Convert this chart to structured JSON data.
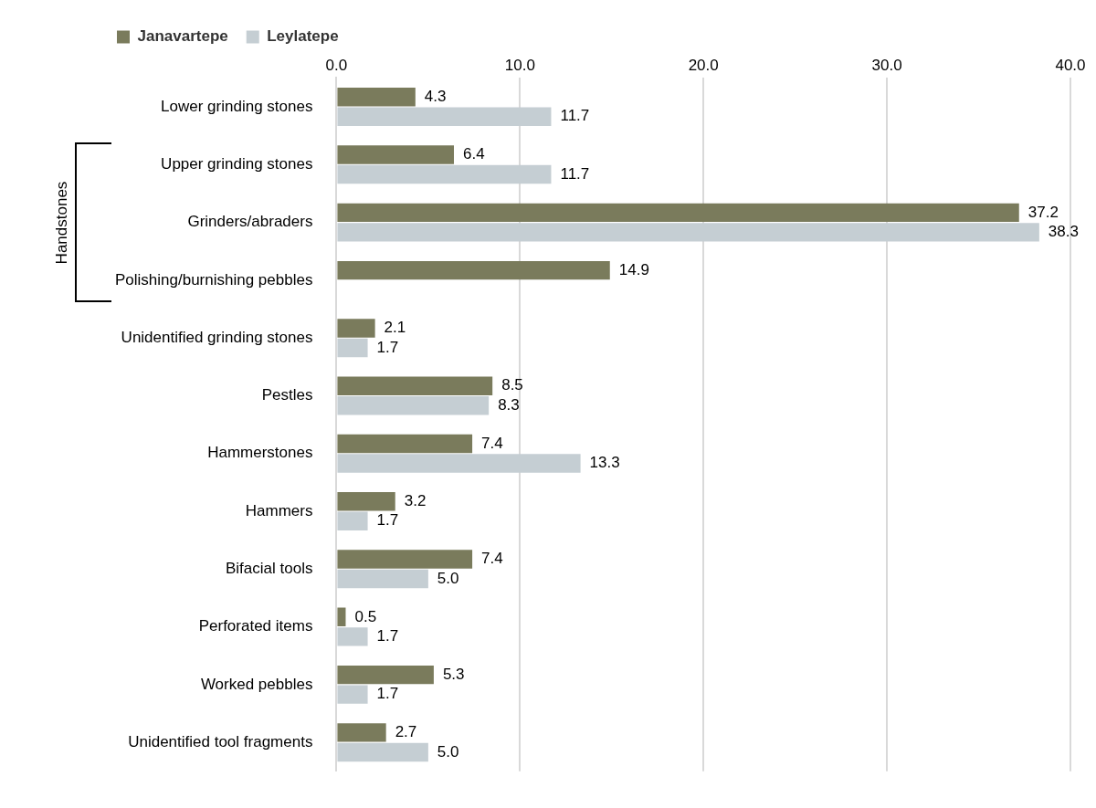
{
  "chart_data": {
    "type": "bar",
    "orientation": "horizontal",
    "categories": [
      "Lower grinding stones",
      "Upper grinding stones",
      "Grinders/abraders",
      "Polishing/burnishing pebbles",
      "Unidentified grinding stones",
      "Pestles",
      "Hammerstones",
      "Hammers",
      "Bifacial tools",
      "Perforated items",
      "Worked pebbles",
      "Unidentified tool fragments"
    ],
    "series": [
      {
        "name": "Janavartepe",
        "color": "#7a7b5c",
        "values": [
          4.3,
          6.4,
          37.2,
          14.9,
          2.1,
          8.5,
          7.4,
          3.2,
          7.4,
          0.5,
          5.3,
          2.7
        ],
        "value_labels": [
          "4.3",
          "6.4",
          "37.2",
          "14.9",
          "2.1",
          "8.5",
          "7.4",
          "3.2",
          "7.4",
          "0.5",
          "5.3",
          "2.7"
        ]
      },
      {
        "name": "Leylatepe",
        "color": "#c5ced3",
        "values": [
          11.7,
          11.7,
          38.3,
          null,
          1.7,
          8.3,
          13.3,
          1.7,
          5.0,
          1.7,
          1.7,
          5.0
        ],
        "value_labels": [
          "11.7",
          "11.7",
          "38.3",
          null,
          "1.7",
          "8.3",
          "13.3",
          "1.7",
          "5.0",
          "1.7",
          "1.7",
          "5.0"
        ]
      }
    ],
    "xlim": [
      0,
      40
    ],
    "xticks": [
      {
        "value": 0,
        "label": "0.0"
      },
      {
        "value": 10,
        "label": "10.0"
      },
      {
        "value": 20,
        "label": "20.0"
      },
      {
        "value": 30,
        "label": "30.0"
      },
      {
        "value": 40,
        "label": "40.0"
      }
    ],
    "grid": "x",
    "legend": "top",
    "annotations": [
      "Handstones"
    ]
  }
}
